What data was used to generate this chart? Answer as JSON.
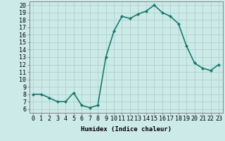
{
  "x": [
    0,
    1,
    2,
    3,
    4,
    5,
    6,
    7,
    8,
    9,
    10,
    11,
    12,
    13,
    14,
    15,
    16,
    17,
    18,
    19,
    20,
    21,
    22,
    23
  ],
  "y": [
    8.0,
    8.0,
    7.5,
    7.0,
    7.0,
    8.2,
    6.5,
    6.2,
    6.5,
    13.0,
    16.5,
    18.5,
    18.2,
    18.8,
    19.2,
    20.0,
    19.0,
    18.5,
    17.5,
    14.5,
    12.2,
    11.5,
    11.2,
    12.0
  ],
  "line_color": "#1a7a6e",
  "marker": "D",
  "marker_size": 2.0,
  "bg_color": "#cceae7",
  "grid_color": "#aaccca",
  "xlabel": "Humidex (Indice chaleur)",
  "xlim": [
    -0.5,
    23.5
  ],
  "ylim": [
    5.5,
    20.5
  ],
  "yticks": [
    6,
    7,
    8,
    9,
    10,
    11,
    12,
    13,
    14,
    15,
    16,
    17,
    18,
    19,
    20
  ],
  "xticks": [
    0,
    1,
    2,
    3,
    4,
    5,
    6,
    7,
    8,
    9,
    10,
    11,
    12,
    13,
    14,
    15,
    16,
    17,
    18,
    19,
    20,
    21,
    22,
    23
  ],
  "xtick_labels": [
    "0",
    "1",
    "2",
    "3",
    "4",
    "5",
    "6",
    "7",
    "8",
    "9",
    "10",
    "11",
    "12",
    "13",
    "14",
    "15",
    "16",
    "17",
    "18",
    "19",
    "20",
    "21",
    "22",
    "23"
  ],
  "ytick_labels": [
    "6",
    "7",
    "8",
    "9",
    "10",
    "11",
    "12",
    "13",
    "14",
    "15",
    "16",
    "17",
    "18",
    "19",
    "20"
  ],
  "label_fontsize": 6.5,
  "tick_fontsize": 6.0,
  "linewidth": 1.2
}
